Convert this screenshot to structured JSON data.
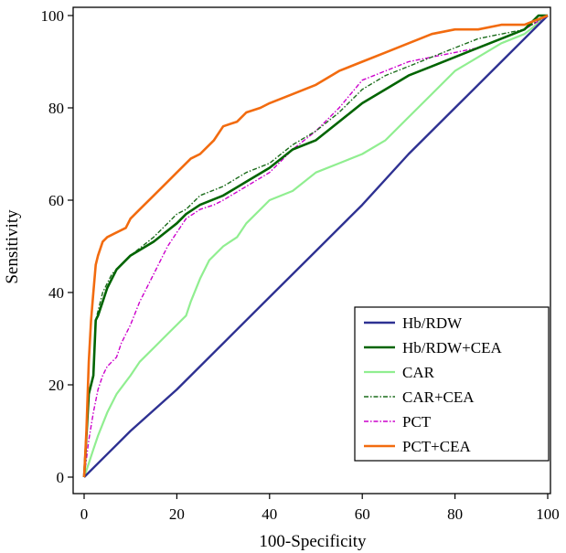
{
  "chart_data": {
    "type": "line",
    "title": "",
    "xlabel": "100-Specificity",
    "ylabel": "Sensitivity",
    "xlim": [
      0,
      100
    ],
    "ylim": [
      0,
      100
    ],
    "xticks": [
      "0",
      "20",
      "40",
      "60",
      "80",
      "100"
    ],
    "yticks": [
      "0",
      "20",
      "40",
      "60",
      "80",
      "100"
    ],
    "grid": false,
    "legend_position": "bottom-right",
    "series": [
      {
        "name": "Hb/RDW",
        "color": "#2e3192",
        "dash": "solid",
        "x": [
          0,
          5,
          10,
          20,
          30,
          40,
          50,
          60,
          70,
          80,
          90,
          96,
          100
        ],
        "y": [
          0,
          5,
          10,
          19,
          29,
          39,
          49,
          59,
          70,
          80,
          90,
          96,
          100
        ]
      },
      {
        "name": "Hb/RDW+CEA",
        "color": "#006400",
        "dash": "solid",
        "x": [
          0,
          1,
          2,
          2.5,
          3,
          4,
          5,
          6,
          7,
          10,
          15,
          20,
          22,
          25,
          30,
          35,
          40,
          45,
          50,
          55,
          60,
          65,
          70,
          75,
          80,
          85,
          90,
          95,
          98,
          100
        ],
        "y": [
          0,
          18,
          22,
          34,
          35,
          38,
          41,
          43,
          45,
          48,
          51,
          55,
          57,
          59,
          61,
          64,
          67,
          71,
          73,
          77,
          81,
          84,
          87,
          89,
          91,
          93,
          95,
          97,
          100,
          100
        ]
      },
      {
        "name": "CAR",
        "color": "#90ee90",
        "dash": "solid",
        "x": [
          0,
          1,
          2,
          3,
          5,
          7,
          10,
          12,
          15,
          18,
          20,
          22,
          23,
          25,
          27,
          30,
          33,
          35,
          38,
          40,
          45,
          50,
          55,
          60,
          65,
          70,
          75,
          80,
          85,
          90,
          95,
          100
        ],
        "y": [
          0,
          3,
          6,
          9,
          14,
          18,
          22,
          25,
          28,
          31,
          33,
          35,
          38,
          43,
          47,
          50,
          52,
          55,
          58,
          60,
          62,
          66,
          68,
          70,
          73,
          78,
          83,
          88,
          91,
          94,
          96,
          100
        ]
      },
      {
        "name": "CAR+CEA",
        "color": "#1a6b1a",
        "dash": "dashdot",
        "x": [
          0,
          1,
          2,
          2.5,
          3,
          4,
          5,
          6,
          8,
          10,
          15,
          20,
          22,
          25,
          30,
          35,
          40,
          45,
          50,
          55,
          60,
          65,
          70,
          75,
          80,
          85,
          90,
          95,
          98,
          100
        ],
        "y": [
          0,
          18,
          22,
          34,
          36,
          40,
          42,
          44,
          46,
          48,
          52,
          57,
          58,
          61,
          63,
          66,
          68,
          72,
          75,
          79,
          84,
          87,
          89,
          91,
          93,
          95,
          96,
          97,
          99,
          100
        ]
      },
      {
        "name": "PCT",
        "color": "#cc00cc",
        "dash": "dashdot",
        "x": [
          0,
          1,
          2,
          3,
          4,
          5,
          7,
          8,
          10,
          12,
          15,
          18,
          20,
          22,
          25,
          28,
          30,
          35,
          40,
          45,
          50,
          55,
          60,
          65,
          70,
          75,
          80,
          85,
          90,
          95,
          100
        ],
        "y": [
          0,
          8,
          14,
          19,
          22,
          24,
          26,
          29,
          33,
          38,
          44,
          50,
          53,
          56,
          58,
          59,
          60,
          63,
          66,
          71,
          75,
          80,
          86,
          88,
          90,
          91,
          92,
          93,
          95,
          97,
          100
        ]
      },
      {
        "name": "PCT+CEA",
        "color": "#f26b0f",
        "dash": "solid",
        "x": [
          0,
          0.5,
          1,
          1.5,
          2,
          2.5,
          3,
          4,
          5,
          7,
          9,
          10,
          12,
          15,
          18,
          20,
          23,
          25,
          28,
          30,
          33,
          35,
          38,
          40,
          45,
          50,
          55,
          60,
          65,
          70,
          75,
          80,
          85,
          90,
          95,
          100
        ],
        "y": [
          0,
          10,
          25,
          34,
          40,
          46,
          48,
          51,
          52,
          53,
          54,
          56,
          58,
          61,
          64,
          66,
          69,
          70,
          73,
          76,
          77,
          79,
          80,
          81,
          83,
          85,
          88,
          90,
          92,
          94,
          96,
          97,
          97,
          98,
          98,
          100
        ]
      }
    ]
  }
}
